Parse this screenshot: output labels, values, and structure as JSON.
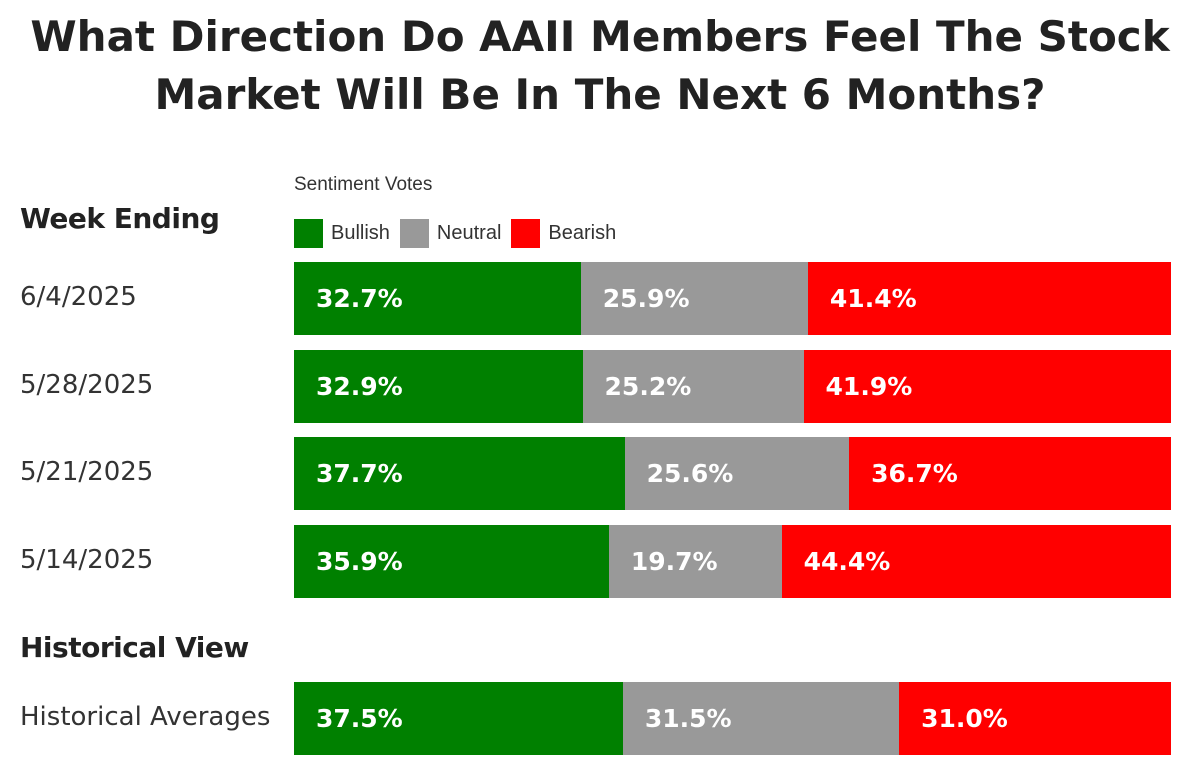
{
  "title_line1": "What Direction Do AAII Members Feel The Stock",
  "title_line2": "Market Will Be In The Next 6 Months?",
  "legend": {
    "title": "Sentiment Votes",
    "items": [
      {
        "label": "Bullish",
        "color": "#008000"
      },
      {
        "label": "Neutral",
        "color": "#999999"
      },
      {
        "label": "Bearish",
        "color": "#ff0000"
      }
    ]
  },
  "sections": {
    "week_ending": "Week Ending",
    "historical_view": "Historical View"
  },
  "chart_data": {
    "type": "bar",
    "stacked": true,
    "orientation": "horizontal",
    "title": "What Direction Do AAII Members Feel The Stock Market Will Be In The Next 6 Months?",
    "categories": [
      "6/4/2025",
      "5/28/2025",
      "5/21/2025",
      "5/14/2025",
      "Historical Averages"
    ],
    "series": [
      {
        "name": "Bullish",
        "color": "#008000",
        "values": [
          32.7,
          32.9,
          37.7,
          35.9,
          37.5
        ]
      },
      {
        "name": "Neutral",
        "color": "#999999",
        "values": [
          25.9,
          25.2,
          25.6,
          19.7,
          31.5
        ]
      },
      {
        "name": "Bearish",
        "color": "#ff0000",
        "values": [
          41.4,
          41.9,
          36.7,
          44.4,
          31.0
        ]
      }
    ],
    "labels": [
      [
        "32.7%",
        "25.9%",
        "41.4%"
      ],
      [
        "32.9%",
        "25.2%",
        "41.9%"
      ],
      [
        "37.7%",
        "25.6%",
        "36.7%"
      ],
      [
        "35.9%",
        "19.7%",
        "44.4%"
      ],
      [
        "37.5%",
        "31.5%",
        "31.0%"
      ]
    ],
    "xlim": [
      0,
      100
    ],
    "grid": false,
    "legend_position": "top"
  }
}
